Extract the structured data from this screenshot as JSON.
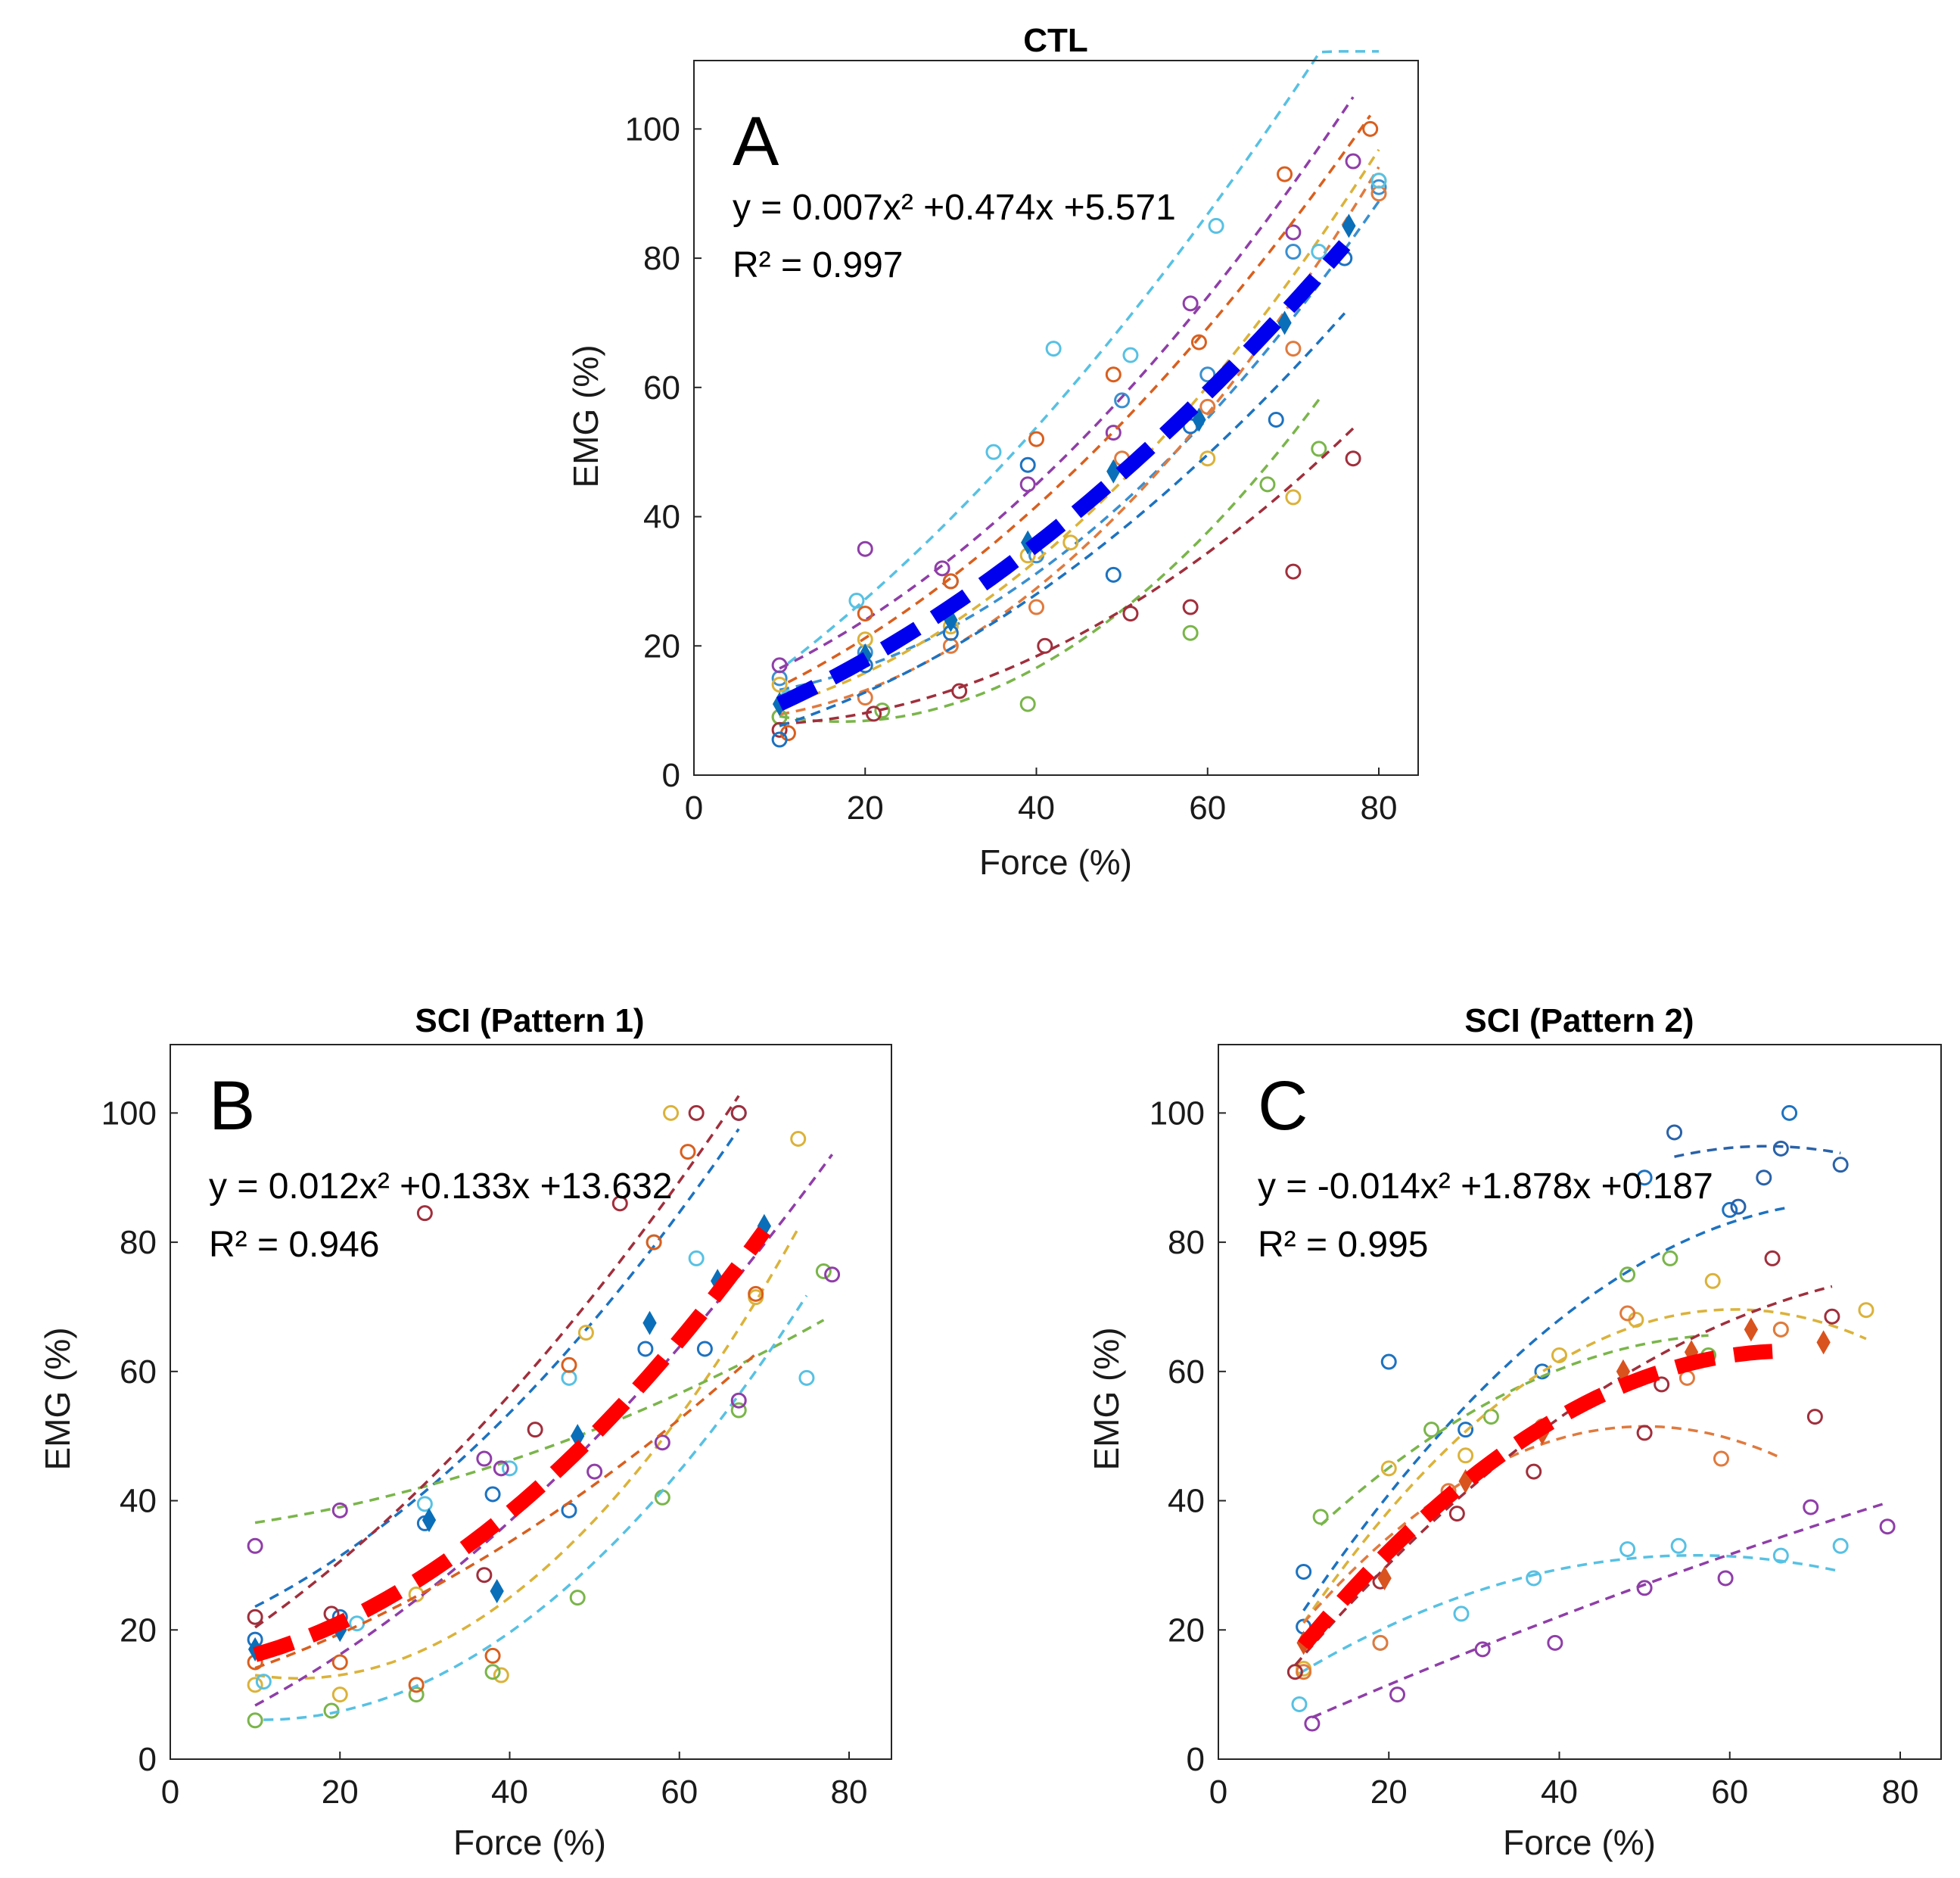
{
  "chart_data": [
    {
      "type": "scatter",
      "panel_letter": "A",
      "title": "CTL",
      "xlabel": "Force (%)",
      "ylabel": "EMG (%)",
      "xlim": [
        0,
        85
      ],
      "ylim": [
        0,
        110
      ],
      "xticks": [
        0,
        20,
        40,
        60,
        80
      ],
      "yticks": [
        0,
        20,
        40,
        60,
        80,
        100
      ],
      "grid": false,
      "equation": "y = 0.007x² +0.474x +5.571",
      "r2": "R² = 0.997",
      "fit": {
        "a": 0.007,
        "b": 0.474,
        "c": 5.571,
        "x_range": [
          10,
          76
        ],
        "color": "#0000ee"
      },
      "mean_points": {
        "color": "#0a6fb8",
        "x": [
          10,
          20,
          30,
          39,
          49,
          59,
          69,
          76.5
        ],
        "y": [
          11,
          18.5,
          24,
          36,
          47,
          55,
          70,
          85
        ]
      },
      "subjects": [
        {
          "color": "#3a8fd0",
          "x": [
            10,
            20,
            30,
            40,
            50,
            60,
            70,
            80
          ],
          "y": [
            15,
            19,
            30,
            34,
            58,
            62,
            81,
            91
          ],
          "fit": [
            0.012,
            0.0,
            12
          ]
        },
        {
          "color": "#e07a3e",
          "x": [
            10,
            20,
            30,
            40,
            50,
            60,
            70,
            80
          ],
          "y": [
            9,
            12,
            20,
            26,
            49,
            57,
            66,
            90
          ],
          "fit": [
            0.014,
            -0.05,
            8.5
          ]
        },
        {
          "color": "#dbb23a",
          "x": [
            10,
            20,
            30,
            39,
            44,
            60,
            70,
            80
          ],
          "y": [
            14,
            21,
            23,
            34,
            36,
            49,
            43,
            92
          ],
          "fit": [
            0.012,
            0.15,
            8
          ]
        },
        {
          "color": "#8f3ea8",
          "x": [
            10,
            20,
            29,
            39,
            49,
            58,
            70,
            77
          ],
          "y": [
            17,
            35,
            32,
            45,
            53,
            73,
            84,
            95
          ],
          "fit": [
            0.01,
            0.45,
            11
          ]
        },
        {
          "color": "#7ab54a",
          "x": [
            10,
            22,
            39,
            58,
            67,
            73
          ],
          "y": [
            9,
            10,
            11,
            22,
            45,
            50.5
          ],
          "fit": [
            0.016,
            -0.55,
            13
          ]
        },
        {
          "color": "#57c1e3",
          "x": [
            11,
            19,
            35,
            42,
            51,
            61,
            73,
            80
          ],
          "y": [
            12,
            27,
            50,
            66,
            65,
            85,
            81,
            92
          ],
          "fit": [
            0.008,
            0.85,
            7
          ]
        },
        {
          "color": "#a02f3c",
          "x": [
            10,
            21,
            31,
            41,
            51,
            58,
            70,
            77
          ],
          "y": [
            7,
            9.5,
            13,
            20,
            25,
            26,
            31.5,
            49
          ],
          "fit": [
            0.009,
            -0.1,
            8
          ]
        },
        {
          "color": "#d95f1e",
          "x": [
            11,
            20,
            30,
            40,
            49,
            59,
            69,
            79
          ],
          "y": [
            6.5,
            25,
            30,
            52,
            62,
            67,
            93,
            100
          ],
          "fit": [
            0.009,
            0.48,
            8
          ]
        },
        {
          "color": "#1d72c0",
          "x": [
            10,
            20,
            30,
            39,
            49,
            58,
            68,
            76
          ],
          "y": [
            5.5,
            17,
            22,
            48,
            31,
            54,
            55,
            80
          ],
          "fit": [
            0.008,
            0.28,
            4
          ]
        }
      ]
    },
    {
      "type": "scatter",
      "panel_letter": "B",
      "title": "SCI (Pattern 1)",
      "xlabel": "Force (%)",
      "ylabel": "EMG (%)",
      "xlim": [
        0,
        85
      ],
      "ylim": [
        0,
        110
      ],
      "xticks": [
        0,
        20,
        40,
        60,
        80
      ],
      "yticks": [
        0,
        20,
        40,
        60,
        80,
        100
      ],
      "grid": false,
      "equation": "y = 0.012x² +0.133x +13.632",
      "r2": "R² = 0.946",
      "fit": {
        "a": 0.012,
        "b": 0.133,
        "c": 13.632,
        "x_range": [
          10,
          70
        ],
        "color": "#ff0000"
      },
      "mean_points": {
        "color": "#0a6fb8",
        "x": [
          10,
          20,
          30.5,
          38.5,
          48,
          56.5,
          64.5,
          70
        ],
        "y": [
          17,
          20,
          37,
          26,
          50,
          67.5,
          74,
          82.5
        ]
      },
      "subjects": [
        {
          "color": "#1d72c0",
          "x": [
            10,
            20,
            30,
            38,
            47,
            56,
            63,
            67
          ],
          "y": [
            18.5,
            22,
            36.5,
            41,
            38.5,
            63.5,
            63.5,
            100
          ],
          "fit": [
            0.011,
            0.45,
            18
          ]
        },
        {
          "color": "#dbb23a",
          "x": [
            10,
            20,
            29,
            39,
            49,
            59,
            69,
            74
          ],
          "y": [
            11.5,
            10,
            25.5,
            13,
            66,
            100,
            71.5,
            96
          ],
          "fit": [
            0.02,
            -0.6,
            17
          ]
        },
        {
          "color": "#7ab54a",
          "x": [
            10,
            19,
            29,
            38,
            48,
            58,
            67,
            77
          ],
          "y": [
            6,
            7.5,
            10,
            13.5,
            25,
            40.5,
            54,
            75.5
          ],
          "fit": [
            0.004,
            0.12,
            35
          ]
        },
        {
          "color": "#57c1e3",
          "x": [
            11,
            22,
            30,
            40,
            47,
            57,
            62,
            75
          ],
          "y": [
            12,
            21,
            39.5,
            45,
            59,
            80,
            77.5,
            59
          ],
          "fit": [
            0.016,
            -0.35,
            8
          ]
        },
        {
          "color": "#8f3ea8",
          "x": [
            10,
            20,
            37,
            39,
            50,
            58,
            67,
            78
          ],
          "y": [
            33,
            38.5,
            46.5,
            45,
            44.5,
            49,
            55.5,
            75
          ],
          "fit": [
            0.008,
            0.55,
            2
          ]
        },
        {
          "color": "#d95f1e",
          "x": [
            10,
            20,
            29,
            38,
            47,
            57,
            61,
            69
          ],
          "y": [
            15,
            15,
            11.5,
            16,
            61,
            80,
            94,
            72
          ],
          "fit": [
            0.006,
            0.35,
            10
          ]
        },
        {
          "color": "#a02f3c",
          "x": [
            10,
            19,
            30,
            37,
            43,
            53,
            62,
            67
          ],
          "y": [
            22,
            22.5,
            84.5,
            28.5,
            51,
            86,
            100,
            100
          ],
          "fit": [
            0.009,
            0.75,
            12
          ]
        }
      ]
    },
    {
      "type": "scatter",
      "panel_letter": "C",
      "title": "SCI (Pattern 2)",
      "xlabel": "Force (%)",
      "ylabel": "EMG (%)",
      "xlim": [
        0,
        85
      ],
      "ylim": [
        0,
        110
      ],
      "xticks": [
        0,
        20,
        40,
        60,
        80
      ],
      "yticks": [
        0,
        20,
        40,
        60,
        80,
        100
      ],
      "grid": false,
      "equation": "y = -0.014x² +1.878x +0.187",
      "r2": "R² = 0.995",
      "fit": {
        "a": -0.014,
        "b": 1.878,
        "c": 0.187,
        "x_range": [
          10,
          65
        ],
        "color": "#ff0000"
      },
      "mean_points": {
        "color": "#d9531e",
        "x": [
          10,
          19.5,
          29,
          38,
          47.5,
          55.5,
          62.5,
          71
        ],
        "y": [
          18,
          28,
          43,
          50.5,
          60,
          63,
          66.5,
          64.5
        ]
      },
      "subjects": [
        {
          "color": "#1d72c0",
          "x": [
            10,
            10,
            20,
            29,
            38,
            50,
            60,
            67
          ],
          "y": [
            20.5,
            29,
            61.5,
            51,
            60,
            90,
            85,
            100
          ],
          "fit": [
            -0.015,
            2.25,
            2
          ]
        },
        {
          "color": "#57c1e3",
          "x": [
            9.5,
            19,
            28.5,
            37,
            48,
            54,
            66,
            73
          ],
          "y": [
            8.5,
            18,
            22.5,
            28,
            32.5,
            33,
            31.5,
            33
          ],
          "fit": [
            -0.0085,
            0.95,
            5
          ]
        },
        {
          "color": "#8f3ea8",
          "x": [
            11,
            21,
            31,
            39.5,
            50,
            59.5,
            69.5,
            78.5
          ],
          "y": [
            5.5,
            10,
            17,
            18,
            26.5,
            28,
            39,
            36
          ],
          "fit": [
            -0.0012,
            0.6,
            0
          ]
        },
        {
          "color": "#7ab54a",
          "x": [
            12,
            25,
            32,
            48,
            53,
            57.5
          ],
          "y": [
            37.5,
            51,
            53,
            75,
            77.5,
            62.5
          ],
          "fit": [
            -0.0123,
            1.5,
            20
          ]
        },
        {
          "color": "#dbb23a",
          "x": [
            10,
            20,
            29,
            40,
            49,
            58,
            66,
            76
          ],
          "y": [
            14,
            45,
            47,
            62.5,
            68,
            74,
            66.5,
            69.5
          ],
          "fit": [
            -0.019,
            2.3,
            0
          ]
        },
        {
          "color": "#e07a3e",
          "x": [
            10,
            19,
            27,
            38,
            48,
            55,
            59,
            66
          ],
          "y": [
            13.5,
            18,
            41.5,
            51.5,
            69,
            59,
            46.5,
            66.5
          ],
          "fit": [
            -0.019,
            1.9,
            4
          ]
        },
        {
          "color": "#a02f3c",
          "x": [
            9,
            19,
            28,
            37,
            50,
            52,
            65,
            70,
            72
          ],
          "y": [
            13.5,
            27.5,
            38,
            44.5,
            50.5,
            58,
            77.5,
            53,
            68.5
          ],
          "fit": [
            -0.0095,
            1.7,
            0
          ]
        },
        {
          "color": "#2a62a8",
          "x": [
            53.5,
            61,
            64,
            66,
            73
          ],
          "y": [
            97,
            85.5,
            90,
            94.5,
            92
          ],
          "fit": [
            -0.014,
            1.8,
            37
          ]
        }
      ]
    }
  ]
}
